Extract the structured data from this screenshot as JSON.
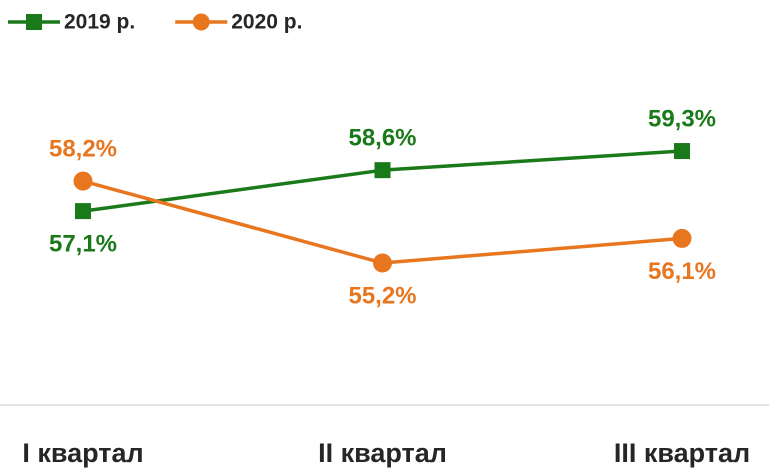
{
  "chart_data": {
    "type": "line",
    "categories": [
      "I квартал",
      "II квартал",
      "III квартал"
    ],
    "series": [
      {
        "name": "2019 р.",
        "color": "#1a7a1a",
        "marker": "square",
        "values": [
          57.1,
          58.6,
          59.3
        ],
        "value_labels": [
          "57,1%",
          "58,6%",
          "59,3%"
        ]
      },
      {
        "name": "2020 р.",
        "color": "#e8761f",
        "marker": "circle",
        "values": [
          58.2,
          55.2,
          56.1
        ],
        "value_labels": [
          "58,2%",
          "55,2%",
          "56,1%"
        ]
      }
    ],
    "ylim": [
      50,
      63
    ],
    "legend": "top-left"
  }
}
